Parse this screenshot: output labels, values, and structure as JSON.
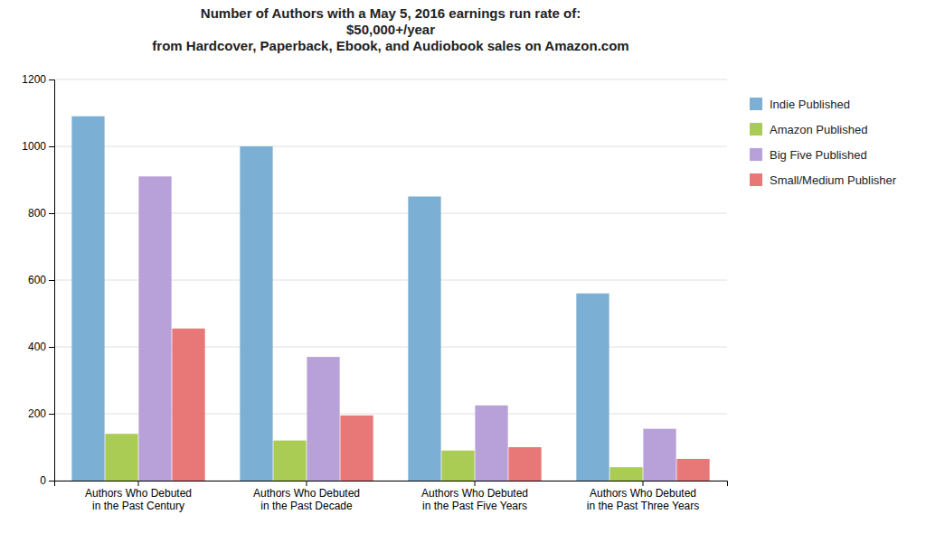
{
  "chart_data": {
    "type": "bar",
    "title": "Number of Authors with a May 5, 2016 earnings run rate of:\n$50,000+/year\nfrom Hardcover, Paperback, Ebook, and Audiobook sales on Amazon.com",
    "categories": [
      "Authors Who Debuted\nin the Past Century",
      "Authors Who Debuted\nin the Past Decade",
      "Authors Who Debuted\nin the Past Five Years",
      "Authors Who Debuted\nin the Past Three Years"
    ],
    "series": [
      {
        "name": "Indie Published",
        "color": "#7BAFD4",
        "values": [
          1090,
          1000,
          850,
          560
        ]
      },
      {
        "name": "Amazon Published",
        "color": "#AACC55",
        "values": [
          140,
          120,
          90,
          40
        ]
      },
      {
        "name": "Big Five Published",
        "color": "#B8A0D8",
        "values": [
          910,
          370,
          225,
          155
        ]
      },
      {
        "name": "Small/Medium Publisher",
        "color": "#E87878",
        "values": [
          455,
          195,
          100,
          65
        ]
      }
    ],
    "ylim": [
      0,
      1200
    ],
    "yticks": [
      0,
      200,
      400,
      600,
      800,
      1000,
      1200
    ],
    "grid": true,
    "legend": "right"
  }
}
